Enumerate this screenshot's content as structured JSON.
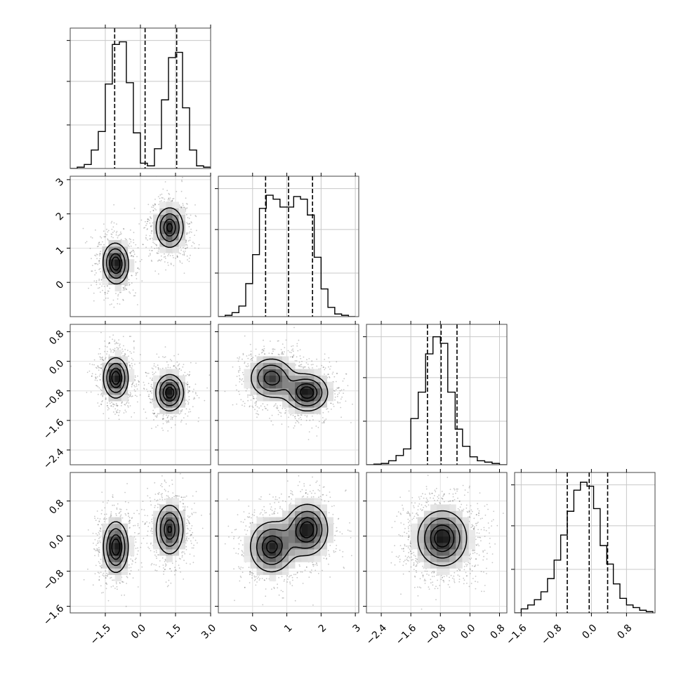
{
  "chart_data": {
    "type": "corner",
    "parameters": [
      {
        "range": [
          -3.0,
          3.0
        ],
        "ticks": [
          -1.5,
          0.0,
          1.5,
          3.0
        ],
        "tick_labels": [
          "−1.5",
          "0.0",
          "1.5",
          "3.0"
        ],
        "quantiles": [
          -1.1,
          0.2,
          1.55
        ],
        "hist_peak": 1.0
      },
      {
        "range": [
          -1.0,
          3.1
        ],
        "ticks": [
          0,
          1,
          2,
          3
        ],
        "tick_labels": [
          "0",
          "1",
          "2",
          "3"
        ],
        "quantiles": [
          0.38,
          1.05,
          1.75
        ],
        "hist_peak": 1.0
      },
      {
        "range": [
          -2.8,
          1.0
        ],
        "ticks": [
          -2.4,
          -1.6,
          -0.8,
          0.0,
          0.8
        ],
        "tick_labels": [
          "−2.4",
          "−1.6",
          "−0.8",
          "0.0",
          "0.8"
        ],
        "quantiles": [
          -1.15,
          -0.78,
          -0.35
        ],
        "hist_peak": 1.0
      },
      {
        "range": [
          -1.75,
          1.45
        ],
        "ticks": [
          -1.6,
          -0.8,
          0.0,
          0.8
        ],
        "tick_labels": [
          "−1.6",
          "−0.8",
          "0.0",
          "0.8"
        ],
        "quantiles": [
          -0.55,
          -0.05,
          0.37
        ],
        "hist_peak": 1.0
      }
    ],
    "histograms_1d": [
      {
        "param": 0,
        "bin_edges": [
          -3.0,
          -2.7,
          -2.4,
          -2.1,
          -1.8,
          -1.5,
          -1.2,
          -0.9,
          -0.6,
          -0.3,
          0.0,
          0.3,
          0.6,
          0.9,
          1.2,
          1.5,
          1.8,
          2.1,
          2.4,
          2.7,
          3.0
        ],
        "counts": [
          0,
          0.01,
          0.03,
          0.14,
          0.28,
          0.64,
          0.94,
          0.96,
          0.65,
          0.27,
          0.04,
          0.02,
          0.15,
          0.52,
          0.84,
          0.88,
          0.46,
          0.14,
          0.02,
          0.01
        ]
      },
      {
        "param": 1,
        "bin_edges": [
          -1.0,
          -0.8,
          -0.6,
          -0.4,
          -0.2,
          0.0,
          0.2,
          0.4,
          0.6,
          0.8,
          1.0,
          1.2,
          1.4,
          1.6,
          1.8,
          2.0,
          2.2,
          2.4,
          2.6,
          2.8,
          3.0
        ],
        "counts": [
          0,
          0.01,
          0.03,
          0.08,
          0.25,
          0.47,
          0.82,
          0.92,
          0.89,
          0.83,
          0.83,
          0.91,
          0.89,
          0.77,
          0.45,
          0.21,
          0.07,
          0.02,
          0.01,
          0
        ]
      },
      {
        "param": 2,
        "bin_edges": [
          -2.8,
          -2.6,
          -2.4,
          -2.2,
          -2.0,
          -1.8,
          -1.6,
          -1.4,
          -1.2,
          -1.0,
          -0.8,
          -0.6,
          -0.4,
          -0.2,
          0.0,
          0.2,
          0.4,
          0.6,
          0.8,
          1.0
        ],
        "counts": [
          0,
          0.005,
          0.01,
          0.03,
          0.07,
          0.12,
          0.35,
          0.55,
          0.84,
          0.97,
          0.92,
          0.55,
          0.27,
          0.14,
          0.06,
          0.03,
          0.02,
          0.01,
          0
        ]
      },
      {
        "param": 3,
        "bin_edges": [
          -1.75,
          -1.6,
          -1.45,
          -1.3,
          -1.15,
          -1.0,
          -0.85,
          -0.7,
          -0.55,
          -0.4,
          -0.25,
          -0.1,
          0.05,
          0.2,
          0.35,
          0.5,
          0.65,
          0.8,
          0.95,
          1.1,
          1.25,
          1.4
        ],
        "counts": [
          0,
          0.03,
          0.06,
          0.1,
          0.16,
          0.26,
          0.4,
          0.59,
          0.77,
          0.93,
          0.99,
          0.96,
          0.79,
          0.51,
          0.37,
          0.22,
          0.11,
          0.06,
          0.04,
          0.02,
          0.01
        ]
      }
    ],
    "density_2d": [
      {
        "x_param": 0,
        "y_param": 1,
        "modes": [
          {
            "x": -1.05,
            "y": 0.55,
            "sx": 0.33,
            "sy": 0.36,
            "rho": -0.05,
            "w": 0.5
          },
          {
            "x": 1.25,
            "y": 1.6,
            "sx": 0.36,
            "sy": 0.36,
            "rho": 0.0,
            "w": 0.5
          }
        ]
      },
      {
        "x_param": 0,
        "y_param": 2,
        "modes": [
          {
            "x": -1.05,
            "y": -0.45,
            "sx": 0.32,
            "sy": 0.33,
            "rho": 0.0,
            "w": 0.5
          },
          {
            "x": 1.25,
            "y": -0.85,
            "sx": 0.36,
            "sy": 0.3,
            "rho": 0.0,
            "w": 0.5
          }
        ]
      },
      {
        "x_param": 0,
        "y_param": 3,
        "modes": [
          {
            "x": -1.05,
            "y": -0.25,
            "sx": 0.32,
            "sy": 0.35,
            "rho": 0.0,
            "w": 0.5
          },
          {
            "x": 1.25,
            "y": 0.15,
            "sx": 0.36,
            "sy": 0.35,
            "rho": 0.0,
            "w": 0.5
          }
        ]
      },
      {
        "x_param": 1,
        "y_param": 2,
        "modes": [
          {
            "x": 0.55,
            "y": -0.45,
            "sx": 0.38,
            "sy": 0.33,
            "rho": 0.0,
            "w": 0.5
          },
          {
            "x": 1.6,
            "y": -0.85,
            "sx": 0.36,
            "sy": 0.3,
            "rho": 0.0,
            "w": 0.5
          }
        ]
      },
      {
        "x_param": 1,
        "y_param": 3,
        "modes": [
          {
            "x": 0.55,
            "y": -0.25,
            "sx": 0.38,
            "sy": 0.35,
            "rho": 0.0,
            "w": 0.5
          },
          {
            "x": 1.6,
            "y": 0.15,
            "sx": 0.36,
            "sy": 0.35,
            "rho": 0.0,
            "w": 0.5
          }
        ]
      },
      {
        "x_param": 2,
        "y_param": 3,
        "modes": [
          {
            "x": -0.75,
            "y": -0.05,
            "sx": 0.4,
            "sy": 0.38,
            "rho": 0.0,
            "w": 1.0
          }
        ]
      }
    ],
    "contour_levels": [
      0.25,
      0.5,
      0.75,
      0.9
    ],
    "xlabel": "",
    "ylabel": "",
    "title": ""
  }
}
